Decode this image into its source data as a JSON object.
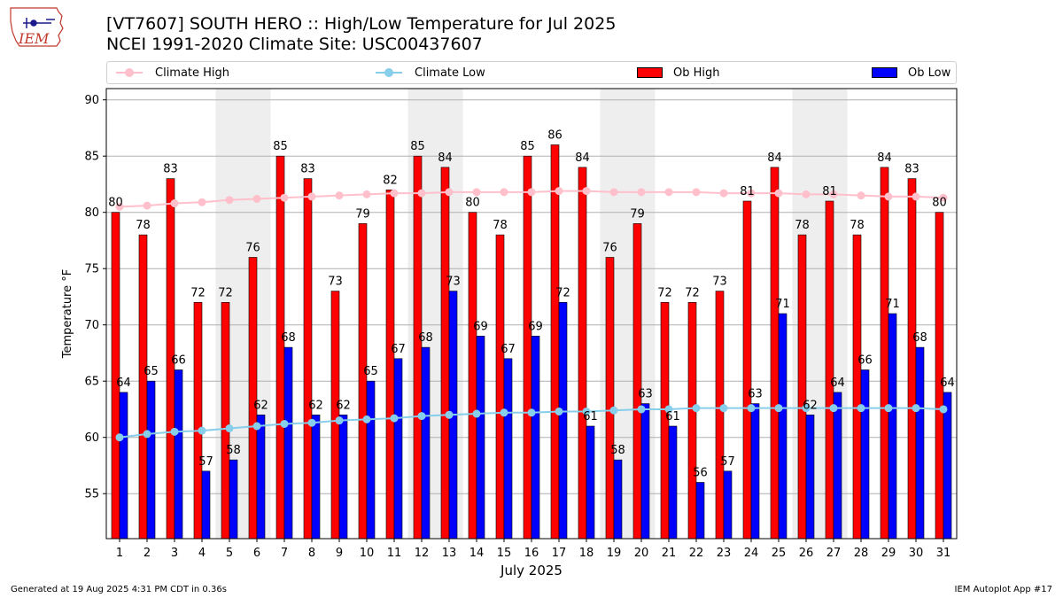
{
  "header": {
    "logo_text": "IEM",
    "title_line1": "[VT7607] SOUTH HERO :: High/Low Temperature for Jul 2025",
    "title_line2": "NCEI 1991-2020 Climate Site: USC00437607"
  },
  "legend": [
    {
      "label": "Climate High",
      "kind": "line",
      "color": "#ffc0cb"
    },
    {
      "label": "Climate Low",
      "kind": "line",
      "color": "#87ceeb"
    },
    {
      "label": "Ob High",
      "kind": "bar",
      "color": "#ff0000"
    },
    {
      "label": "Ob Low",
      "kind": "bar",
      "color": "#0000ff"
    }
  ],
  "footer": {
    "left": "Generated at 19 Aug 2025 4:31 PM CDT in 0.36s",
    "right": "IEM Autoplot App #17"
  },
  "chart_data": {
    "type": "bar",
    "xlabel": "July 2025",
    "ylabel": "Temperature °F",
    "ylim": [
      51,
      91
    ],
    "yticks": [
      55,
      60,
      65,
      70,
      75,
      80,
      85,
      90
    ],
    "grid": "horizontal",
    "legend_position": "top",
    "weekend_shading": [
      [
        5,
        6
      ],
      [
        12,
        13
      ],
      [
        19,
        20
      ],
      [
        26,
        27
      ]
    ],
    "shade_color": "#eeeeee",
    "categories": [
      "1",
      "2",
      "3",
      "4",
      "5",
      "6",
      "7",
      "8",
      "9",
      "10",
      "11",
      "12",
      "13",
      "14",
      "15",
      "16",
      "17",
      "18",
      "19",
      "20",
      "21",
      "22",
      "23",
      "24",
      "25",
      "26",
      "27",
      "28",
      "29",
      "30",
      "31"
    ],
    "series": [
      {
        "name": "Ob High",
        "kind": "bar",
        "color": "#ff0000",
        "values": [
          80,
          78,
          83,
          72,
          72,
          76,
          85,
          83,
          73,
          79,
          82,
          85,
          84,
          80,
          78,
          85,
          86,
          84,
          76,
          79,
          72,
          72,
          73,
          81,
          84,
          78,
          81,
          78,
          84,
          83,
          80
        ]
      },
      {
        "name": "Ob Low",
        "kind": "bar",
        "color": "#0000ff",
        "values": [
          64,
          65,
          66,
          57,
          58,
          62,
          68,
          62,
          62,
          65,
          67,
          68,
          73,
          69,
          67,
          69,
          72,
          61,
          58,
          63,
          61,
          56,
          57,
          63,
          71,
          62,
          64,
          66,
          71,
          68,
          64
        ]
      },
      {
        "name": "Climate High",
        "kind": "line",
        "color": "#ffc0cb",
        "values": [
          80.5,
          80.6,
          80.8,
          80.9,
          81.1,
          81.2,
          81.3,
          81.4,
          81.5,
          81.6,
          81.7,
          81.7,
          81.8,
          81.8,
          81.8,
          81.8,
          81.9,
          81.9,
          81.8,
          81.8,
          81.8,
          81.8,
          81.7,
          81.7,
          81.7,
          81.6,
          81.6,
          81.5,
          81.4,
          81.4,
          81.3
        ]
      },
      {
        "name": "Climate Low",
        "kind": "line",
        "color": "#87ceeb",
        "values": [
          60.0,
          60.3,
          60.5,
          60.6,
          60.8,
          61.0,
          61.2,
          61.3,
          61.5,
          61.6,
          61.7,
          61.9,
          62.0,
          62.1,
          62.2,
          62.2,
          62.3,
          62.3,
          62.4,
          62.5,
          62.5,
          62.6,
          62.6,
          62.6,
          62.6,
          62.6,
          62.6,
          62.6,
          62.6,
          62.6,
          62.5
        ]
      }
    ]
  }
}
